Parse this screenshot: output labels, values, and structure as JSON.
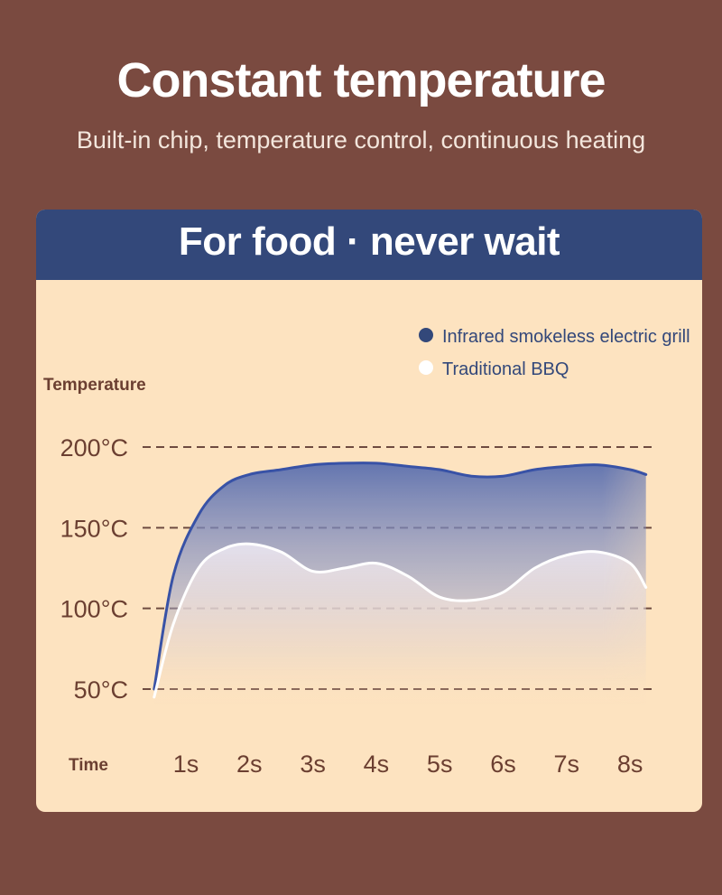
{
  "header": {
    "title": "Constant temperature",
    "subtitle": "Built-in chip, temperature control, continuous heating"
  },
  "card": {
    "title": "For food · never wait"
  },
  "colors": {
    "background": "#7a4a40",
    "card": "#fde3c0",
    "accent": "#33487a",
    "grill_line": "#3852a6",
    "bbq_line": "#ffffff",
    "text_brown": "#6b3f31"
  },
  "chart_data": {
    "type": "area",
    "ylabel": "Temperature",
    "xlabel": "Time",
    "categories": [
      "1s",
      "2s",
      "3s",
      "4s",
      "5s",
      "6s",
      "7s",
      "8s"
    ],
    "y_ticks": [
      "200°C",
      "150°C",
      "100°C",
      "50°C"
    ],
    "y_tick_values": [
      200,
      150,
      100,
      50
    ],
    "ylim": [
      50,
      200
    ],
    "grid": "dashed horizontal",
    "legend_position": "top-right",
    "series": [
      {
        "name": "Infrared smokeless electric grill",
        "color": "#3852a6",
        "x": [
          0.5,
          0.8,
          1.2,
          1.6,
          2,
          2.5,
          3,
          3.5,
          4,
          4.5,
          5,
          5.5,
          6,
          6.5,
          7,
          7.5,
          8,
          8.25
        ],
        "values": [
          50,
          120,
          158,
          176,
          183,
          186,
          189,
          190,
          190,
          188,
          186,
          182,
          182,
          186,
          188,
          189,
          186,
          183
        ]
      },
      {
        "name": "Traditional BBQ",
        "color": "#ffffff",
        "x": [
          0.5,
          0.8,
          1.2,
          1.6,
          2,
          2.5,
          3,
          3.5,
          4,
          4.5,
          5,
          5.5,
          6,
          6.5,
          7,
          7.5,
          8,
          8.25
        ],
        "values": [
          45,
          90,
          125,
          137,
          140,
          135,
          123,
          125,
          128,
          120,
          107,
          105,
          110,
          125,
          133,
          135,
          128,
          113
        ]
      }
    ]
  }
}
